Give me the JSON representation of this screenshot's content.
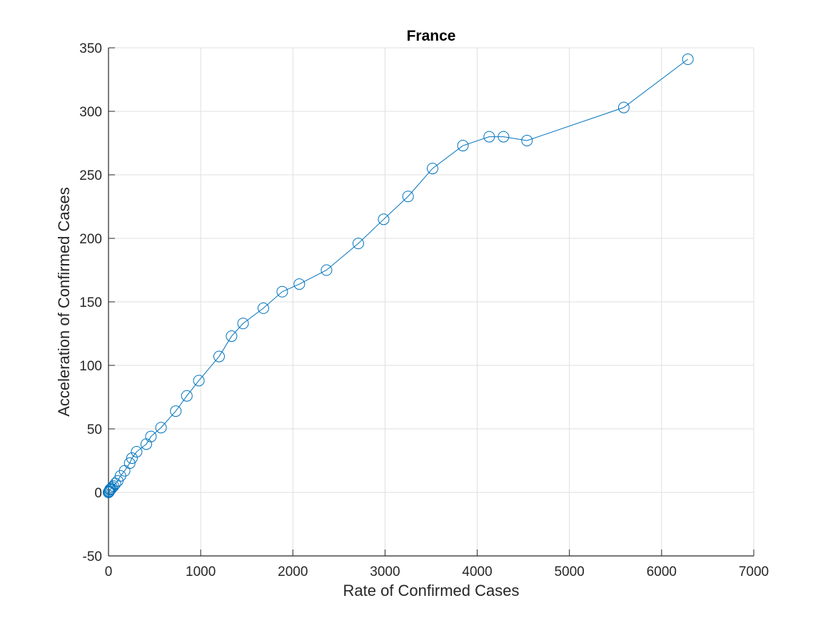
{
  "chart_data": {
    "type": "line",
    "title": "France",
    "xlabel": "Rate of Confirmed Cases",
    "ylabel": "Acceleration of Confirmed Cases",
    "xlim": [
      0,
      7000
    ],
    "ylim": [
      -50,
      350
    ],
    "xticks": [
      "0",
      "1000",
      "2000",
      "3000",
      "4000",
      "5000",
      "6000",
      "7000"
    ],
    "yticks": [
      "-50",
      "0",
      "50",
      "100",
      "150",
      "200",
      "250",
      "300",
      "350"
    ],
    "grid": true,
    "marker": "circle-open",
    "color": "#0072bd",
    "series": [
      {
        "x": [
          0,
          5,
          10,
          15,
          20,
          30,
          40,
          55,
          75,
          100,
          130,
          175,
          230,
          255,
          305,
          410,
          460,
          570,
          730,
          850,
          980,
          1200,
          1335,
          1460,
          1680,
          1885,
          2070,
          2365,
          2710,
          2985,
          3250,
          3515,
          3845,
          4130,
          4285,
          4540,
          5590,
          6285
        ],
        "y": [
          0,
          0.5,
          1,
          2,
          2.5,
          3,
          4,
          5,
          7,
          9,
          13,
          17,
          23,
          27,
          32,
          38,
          44,
          51,
          64,
          76,
          88,
          107,
          123,
          133,
          145,
          158,
          164,
          175,
          196,
          215,
          233,
          255,
          273,
          280,
          280,
          277,
          303,
          341
        ]
      }
    ]
  }
}
